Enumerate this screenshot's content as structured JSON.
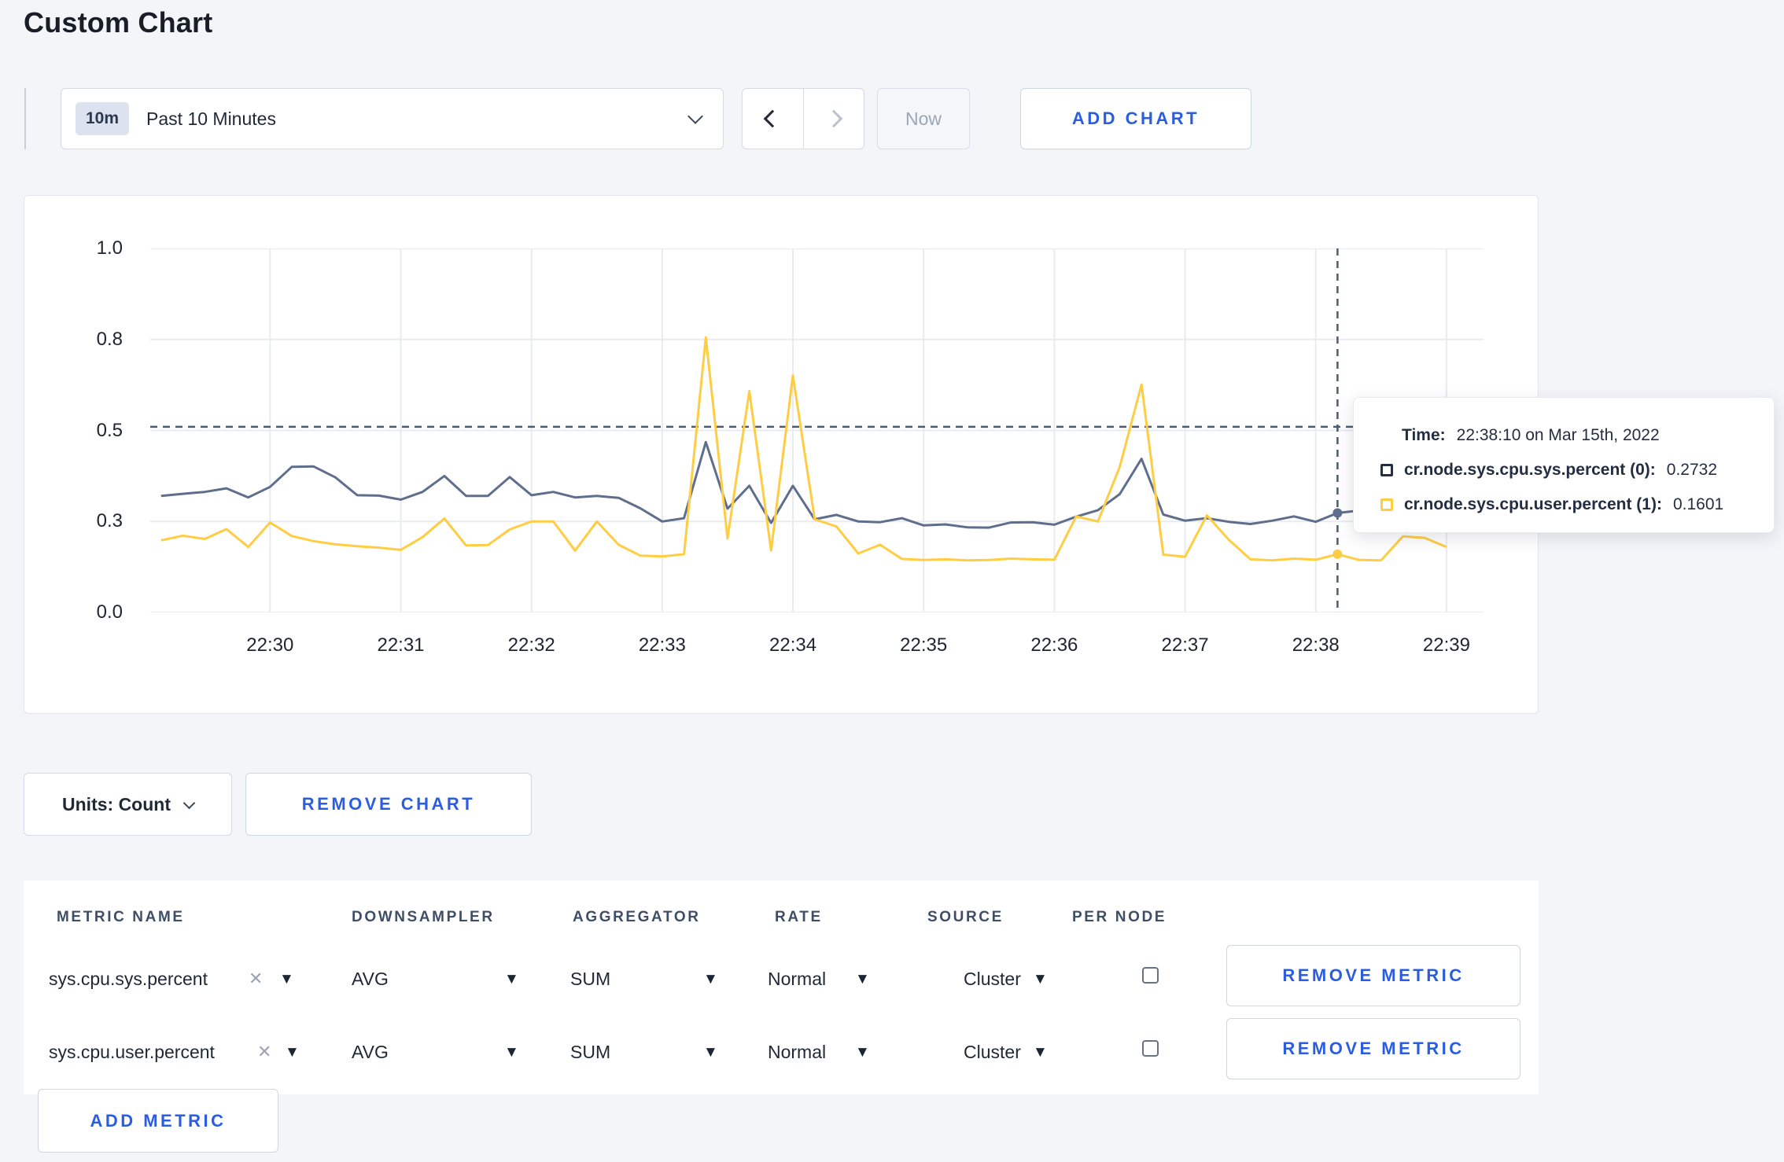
{
  "page": {
    "title": "Custom Chart"
  },
  "toolbar": {
    "time_badge": "10m",
    "time_label": "Past 10 Minutes",
    "now_label": "Now",
    "add_chart_label": "ADD CHART"
  },
  "chart_controls": {
    "units_label": "Units: Count",
    "remove_chart_label": "REMOVE CHART"
  },
  "tooltip": {
    "time_label": "Time:",
    "time_value": "22:38:10 on Mar 15th, 2022",
    "series": [
      {
        "name": "cr.node.sys.cpu.sys.percent (0):",
        "value": "0.2732",
        "color": "#242e42"
      },
      {
        "name": "cr.node.sys.cpu.user.percent (1):",
        "value": "0.1601",
        "color": "#ffcd44"
      }
    ]
  },
  "chart_data": {
    "type": "line",
    "title": "",
    "x_axis": {
      "tick_labels": [
        "22:30",
        "22:31",
        "22:32",
        "22:33",
        "22:34",
        "22:35",
        "22:36",
        "22:37",
        "22:38",
        "22:39"
      ],
      "tick_seconds": [
        0,
        60,
        120,
        180,
        240,
        300,
        360,
        420,
        480,
        540
      ],
      "range_seconds": [
        -55,
        557
      ]
    },
    "y_axis": {
      "tick_values": [
        0,
        0.25,
        0.5,
        0.75,
        1.0
      ],
      "tick_labels": [
        "0.0",
        "0.3",
        "0.5",
        "0.8",
        "1.0"
      ],
      "range": [
        0,
        1
      ]
    },
    "grid": true,
    "legend_position": "tooltip-only",
    "sample_start_seconds": -50,
    "sample_step_seconds": 10,
    "series": [
      {
        "name": "cr.node.sys.cpu.sys.percent",
        "color": "#5f6e8c",
        "values": [
          0.32,
          0.326,
          0.331,
          0.341,
          0.316,
          0.345,
          0.4,
          0.401,
          0.371,
          0.322,
          0.321,
          0.31,
          0.331,
          0.375,
          0.32,
          0.32,
          0.372,
          0.322,
          0.331,
          0.316,
          0.32,
          0.315,
          0.286,
          0.25,
          0.259,
          0.468,
          0.285,
          0.348,
          0.246,
          0.348,
          0.256,
          0.268,
          0.25,
          0.248,
          0.259,
          0.239,
          0.242,
          0.234,
          0.233,
          0.247,
          0.248,
          0.241,
          0.263,
          0.281,
          0.325,
          0.422,
          0.269,
          0.252,
          0.259,
          0.249,
          0.243,
          0.252,
          0.264,
          0.249,
          0.2732,
          0.28,
          0.3,
          0.31,
          0.295,
          0.3
        ]
      },
      {
        "name": "cr.node.sys.cpu.user.percent",
        "color": "#ffcd44",
        "values": [
          0.198,
          0.211,
          0.202,
          0.229,
          0.18,
          0.247,
          0.21,
          0.196,
          0.187,
          0.182,
          0.178,
          0.172,
          0.207,
          0.258,
          0.184,
          0.185,
          0.228,
          0.25,
          0.25,
          0.17,
          0.25,
          0.186,
          0.156,
          0.154,
          0.16,
          0.756,
          0.203,
          0.608,
          0.17,
          0.651,
          0.256,
          0.236,
          0.162,
          0.186,
          0.147,
          0.144,
          0.146,
          0.143,
          0.144,
          0.148,
          0.146,
          0.145,
          0.264,
          0.25,
          0.4,
          0.626,
          0.159,
          0.153,
          0.267,
          0.2,
          0.146,
          0.143,
          0.148,
          0.145,
          0.1601,
          0.144,
          0.143,
          0.209,
          0.205,
          0.18
        ]
      }
    ],
    "hover": {
      "seconds": 490,
      "guideline_value": 0.51,
      "point_values": [
        0.2732,
        0.1601
      ]
    }
  },
  "metrics_table": {
    "columns": [
      "METRIC NAME",
      "DOWNSAMPLER",
      "AGGREGATOR",
      "RATE",
      "SOURCE",
      "PER NODE"
    ],
    "rows": [
      {
        "metric": "sys.cpu.sys.percent",
        "downsampler": "AVG",
        "aggregator": "SUM",
        "rate": "Normal",
        "source": "Cluster",
        "per_node_checked": false,
        "remove_label": "REMOVE METRIC"
      },
      {
        "metric": "sys.cpu.user.percent",
        "downsampler": "AVG",
        "aggregator": "SUM",
        "rate": "Normal",
        "source": "Cluster",
        "per_node_checked": false,
        "remove_label": "REMOVE METRIC"
      }
    ],
    "add_metric_label": "ADD METRIC"
  },
  "colors": {
    "accent_blue": "#2b5de0",
    "series_sys": "#5f6e8c",
    "series_user": "#ffcd44",
    "guideline": "#4a5a73",
    "gridline": "#e9ebf0"
  }
}
